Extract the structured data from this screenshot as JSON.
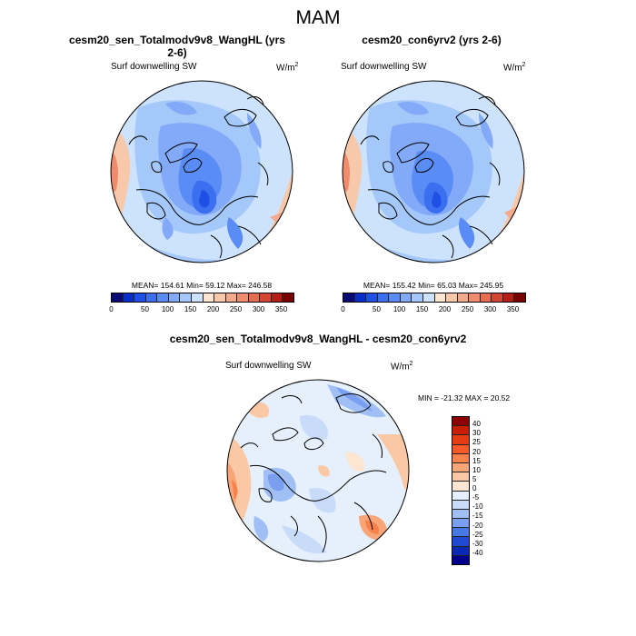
{
  "title": "MAM",
  "panels": [
    {
      "title": "cesm20_sen_Totalmodv9v8_WangHL (yrs 2-6)",
      "variable": "Surf downwelling SW",
      "units": "W/m",
      "units_exp": "2",
      "stats": "MEAN= 154.61  Min=  59.12  Max= 246.58"
    },
    {
      "title": "cesm20_con6yrv2 (yrs 2-6)",
      "variable": "Surf downwelling SW",
      "units": "W/m",
      "units_exp": "2",
      "stats": "MEAN= 155.42  Min=  65.03  Max= 245.95"
    }
  ],
  "diff_panel": {
    "title": "cesm20_sen_Totalmodv9v8_WangHL - cesm20_con6yrv2",
    "variable": "Surf downwelling SW",
    "units": "W/m",
    "units_exp": "2",
    "stats": "MIN = -21.32 MAX =  20.52"
  },
  "colorbar_abs": {
    "ticks": [
      "0",
      "50",
      "100",
      "150",
      "200",
      "250",
      "300",
      "350"
    ],
    "colors": [
      "#0a0a73",
      "#0a2ec8",
      "#1e50e6",
      "#3c6ef0",
      "#5a8cf5",
      "#82aaf8",
      "#a5c8fa",
      "#cde2fc",
      "#fce6d2",
      "#f8c8aa",
      "#f5aa8c",
      "#f08c6e",
      "#e66e50",
      "#d24632",
      "#b41e14",
      "#780000"
    ]
  },
  "colorbar_diff": {
    "ticks": [
      "40",
      "30",
      "25",
      "20",
      "15",
      "10",
      "5",
      "0",
      "-5",
      "-10",
      "-15",
      "-20",
      "-25",
      "-30",
      "-40"
    ],
    "colors": [
      "#8c0000",
      "#c81e00",
      "#e63c14",
      "#f55a28",
      "#f8824b",
      "#f8a578",
      "#fac8a5",
      "#fce6d2",
      "#e6f0fc",
      "#c8dcfa",
      "#a0c0f5",
      "#7a9ff0",
      "#4678e6",
      "#1e4bd2",
      "#0a28b4",
      "#00008c"
    ]
  }
}
